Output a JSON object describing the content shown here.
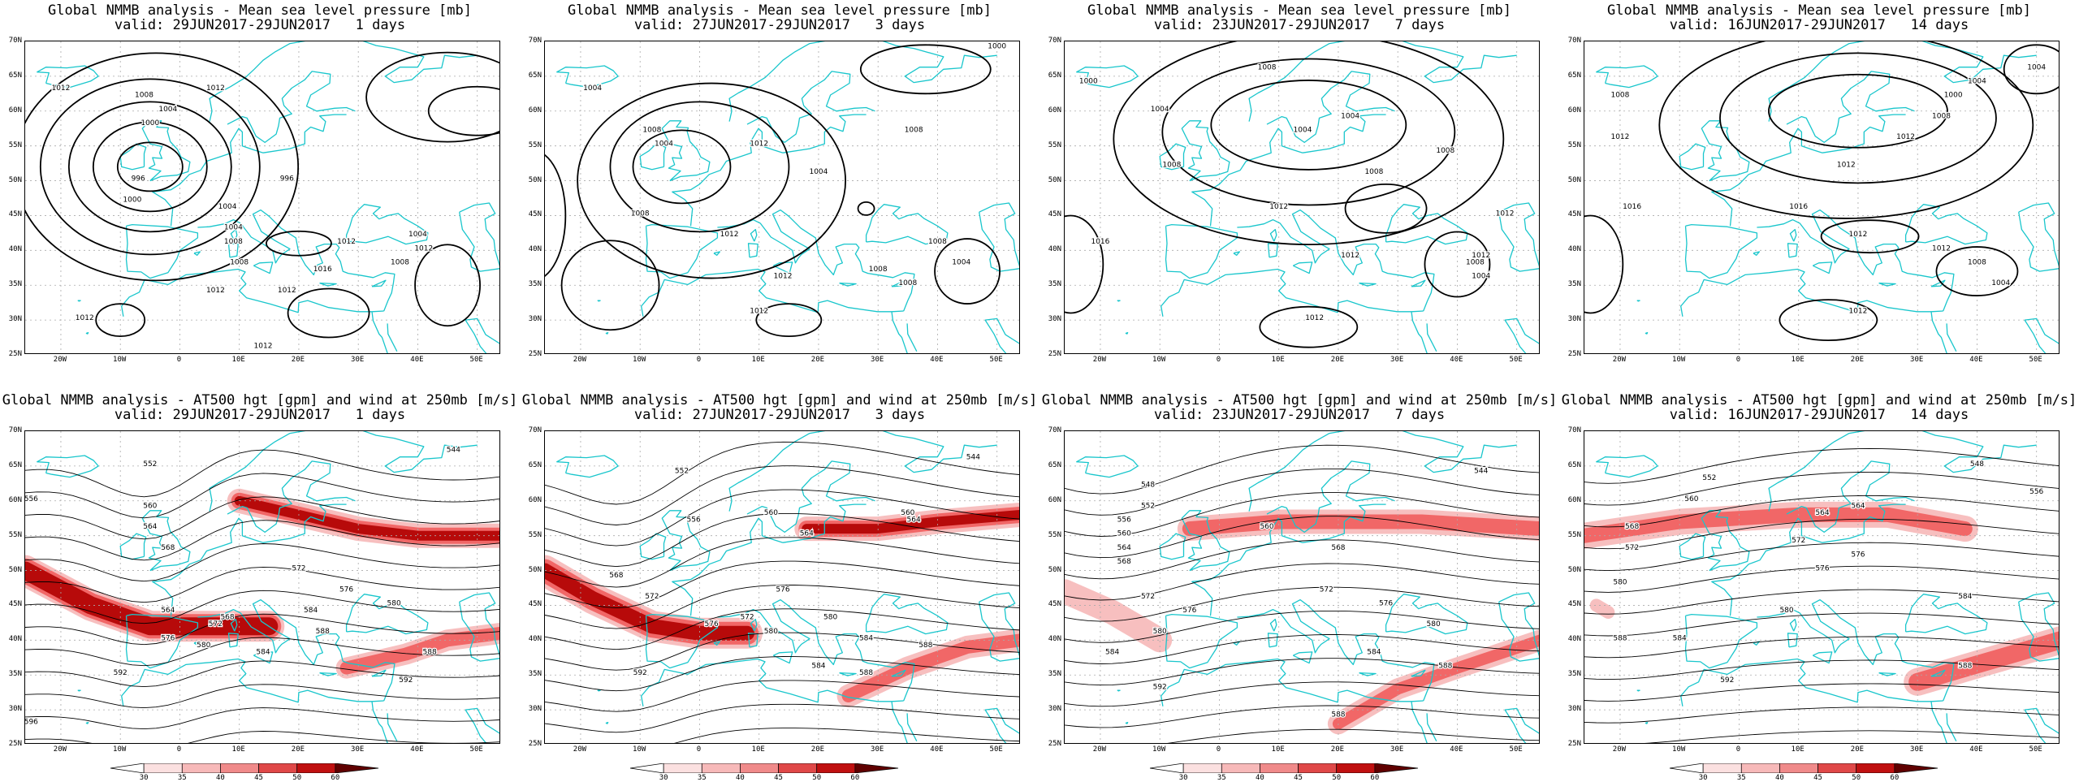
{
  "panels": [
    {
      "row": "mslp",
      "title_line1": "Global NMMB analysis - Mean sea level pressure [mb]",
      "title_line2": "valid: 29JUN2017-29JUN2017   1 days"
    },
    {
      "row": "mslp",
      "title_line1": "Global NMMB analysis - Mean sea level pressure [mb]",
      "title_line2": "valid: 27JUN2017-29JUN2017   3 days"
    },
    {
      "row": "mslp",
      "title_line1": "Global NMMB analysis - Mean sea level pressure [mb]",
      "title_line2": "valid: 23JUN2017-29JUN2017   7 days"
    },
    {
      "row": "mslp",
      "title_line1": "Global NMMB analysis - Mean sea level pressure [mb]",
      "title_line2": "valid: 16JUN2017-29JUN2017   14 days"
    },
    {
      "row": "at500",
      "title_line1": "Global NMMB analysis - AT500 hgt [gpm] and wind at 250mb [m/s]",
      "title_line2": "valid: 29JUN2017-29JUN2017   1 days"
    },
    {
      "row": "at500",
      "title_line1": "Global NMMB analysis - AT500 hgt [gpm] and wind at 250mb [m/s]",
      "title_line2": "valid: 27JUN2017-29JUN2017   3 days"
    },
    {
      "row": "at500",
      "title_line1": "Global NMMB analysis - AT500 hgt [gpm] and wind at 250mb [m/s]",
      "title_line2": "valid: 23JUN2017-29JUN2017   7 days"
    },
    {
      "row": "at500",
      "title_line1": "Global NMMB analysis - AT500 hgt [gpm] and wind at 250mb [m/s]",
      "title_line2": "valid: 16JUN2017-29JUN2017   14 days"
    }
  ],
  "lat_labels": [
    "70N",
    "65N",
    "60N",
    "55N",
    "50N",
    "45N",
    "40N",
    "35N",
    "30N",
    "25N"
  ],
  "lon_labels": [
    "20W",
    "10W",
    "0",
    "10E",
    "20E",
    "30E",
    "40E",
    "50E"
  ],
  "colorbar_labels": [
    "30",
    "35",
    "40",
    "45",
    "50",
    "60"
  ],
  "colors": {
    "coast": "#19c6cc",
    "contour": "#000000",
    "jet_light": "#f6b4b4",
    "jet_mid": "#ef5d5d",
    "jet_dark": "#b00000",
    "grid": "#aaaaaa"
  },
  "contour_labels": [
    [
      "1012",
      "1012",
      "1008",
      "1004",
      "1000",
      "996",
      "996",
      "1000",
      "1004",
      "1004",
      "1008",
      "1008",
      "1012",
      "1012",
      "1012",
      "1016",
      "1012",
      "1004",
      "1012",
      "1008",
      "1012"
    ],
    [
      "1000",
      "1004",
      "1008",
      "1012",
      "1008",
      "1004",
      "1004",
      "1008",
      "1012",
      "1008",
      "1008",
      "1012",
      "1008",
      "1004",
      "1012"
    ],
    [
      "1000",
      "1004",
      "1008",
      "1004",
      "1008",
      "1004",
      "1008",
      "1008",
      "1012",
      "1012",
      "1016",
      "1012",
      "1012",
      "1008",
      "1004",
      "1012"
    ],
    [
      "1004",
      "1008",
      "1012",
      "1000",
      "1004",
      "1008",
      "1012",
      "1012",
      "1016",
      "1016",
      "1012",
      "1012",
      "1008",
      "1004",
      "1012"
    ],
    [
      "544",
      "552",
      "556",
      "560",
      "564",
      "568",
      "572",
      "576",
      "580",
      "584",
      "588",
      "592",
      "596",
      "564",
      "568",
      "572",
      "576",
      "580",
      "584",
      "588",
      "592"
    ],
    [
      "544",
      "552",
      "556",
      "560",
      "564",
      "568",
      "572",
      "576",
      "580",
      "584",
      "588",
      "592",
      "560",
      "564",
      "572",
      "576",
      "580",
      "584",
      "588"
    ],
    [
      "544",
      "548",
      "552",
      "556",
      "560",
      "564",
      "568",
      "572",
      "576",
      "580",
      "584",
      "588",
      "592",
      "560",
      "568",
      "572",
      "576",
      "580",
      "584",
      "588"
    ],
    [
      "548",
      "552",
      "556",
      "560",
      "564",
      "568",
      "572",
      "576",
      "580",
      "584",
      "588",
      "592",
      "564",
      "572",
      "576",
      "580",
      "584",
      "588"
    ]
  ]
}
